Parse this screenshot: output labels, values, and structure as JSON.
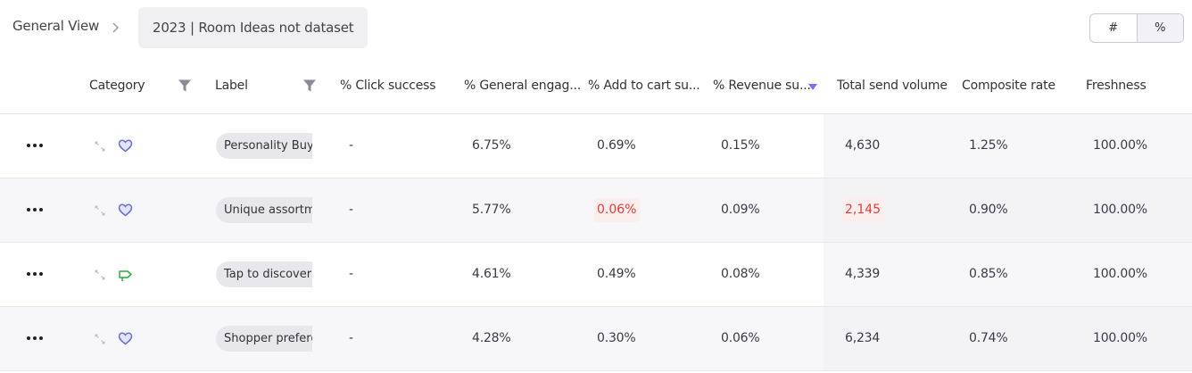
{
  "breadcrumb": {
    "home": "General View",
    "current": "2023 | Room Ideas not dataset"
  },
  "toggle": {
    "count_label": "#",
    "percent_label": "%"
  },
  "columns": {
    "category": "Category",
    "label": "Label",
    "click_success": "% Click success",
    "general_engagement": "% General engag...",
    "add_to_cart": "% Add to cart su...",
    "revenue": "% Revenue su...",
    "total_send_volume": "Total send volume",
    "composite_rate": "Composite rate",
    "freshness": "Freshness"
  },
  "colors": {
    "warning_text": "#e03e3e",
    "heart": "#6b6fd4",
    "arrow": "#2faa3c",
    "sort_arrow": "#7b6cf0"
  },
  "rows": [
    {
      "icon": "heart-icon",
      "label": "Personality Buyer",
      "click_success": "-",
      "general_engagement": "6.75%",
      "add_to_cart": "0.69%",
      "add_to_cart_warn": false,
      "revenue": "0.15%",
      "total_send_volume": "4,630",
      "send_warn": false,
      "composite_rate": "1.25%",
      "freshness": "100.00%"
    },
    {
      "icon": "heart-icon",
      "label": "Unique assortment",
      "click_success": "-",
      "general_engagement": "5.77%",
      "add_to_cart": "0.06%",
      "add_to_cart_warn": true,
      "revenue": "0.09%",
      "total_send_volume": "2,145",
      "send_warn": true,
      "composite_rate": "0.90%",
      "freshness": "100.00%"
    },
    {
      "icon": "signpost-arrow-icon",
      "label": "Tap to discover",
      "click_success": "-",
      "general_engagement": "4.61%",
      "add_to_cart": "0.49%",
      "add_to_cart_warn": false,
      "revenue": "0.08%",
      "total_send_volume": "4,339",
      "send_warn": false,
      "composite_rate": "0.85%",
      "freshness": "100.00%"
    },
    {
      "icon": "heart-icon",
      "label": "Shopper preference",
      "click_success": "-",
      "general_engagement": "4.28%",
      "add_to_cart": "0.30%",
      "add_to_cart_warn": false,
      "revenue": "0.06%",
      "total_send_volume": "6,234",
      "send_warn": false,
      "composite_rate": "0.74%",
      "freshness": "100.00%"
    }
  ]
}
